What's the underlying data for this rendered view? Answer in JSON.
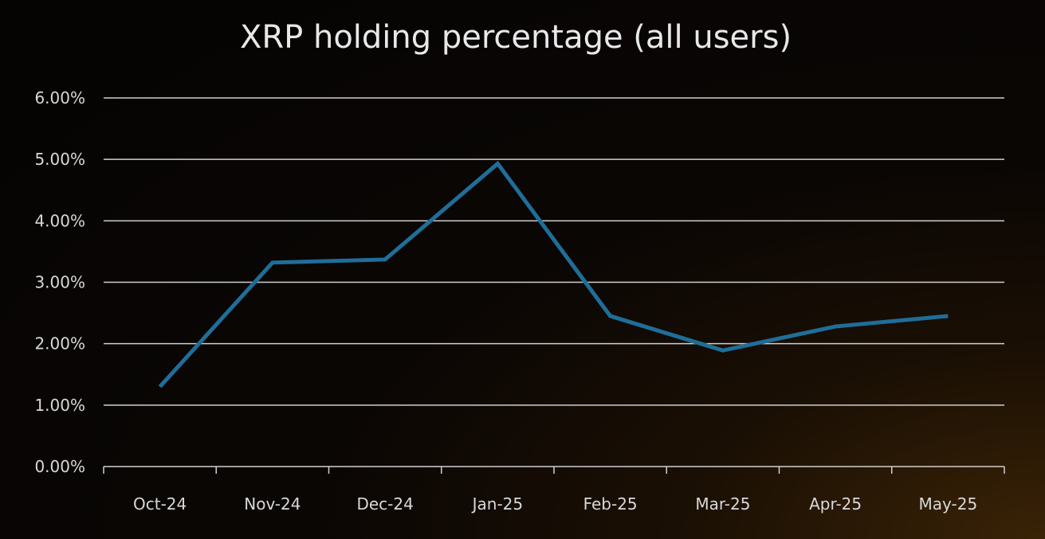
{
  "chart_data": {
    "type": "line",
    "title": "XRP holding percentage (all users)",
    "xlabel": "",
    "ylabel": "",
    "categories": [
      "Oct-24",
      "Nov-24",
      "Dec-24",
      "Jan-25",
      "Feb-25",
      "Mar-25",
      "Apr-25",
      "May-25"
    ],
    "series": [
      {
        "values": [
          1.3,
          3.32,
          3.37,
          4.93,
          2.45,
          1.89,
          2.28,
          2.45
        ],
        "color": "#1f6e99"
      }
    ],
    "y_ticks": [
      "0.00%",
      "1.00%",
      "2.00%",
      "3.00%",
      "4.00%",
      "5.00%",
      "6.00%"
    ],
    "ylim": [
      0,
      6
    ],
    "y_unit": "%",
    "grid": true,
    "legend": "none"
  }
}
